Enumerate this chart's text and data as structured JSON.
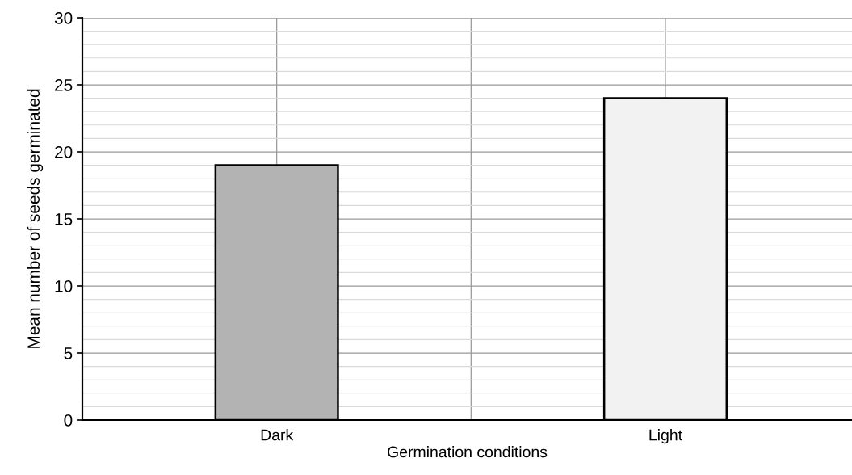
{
  "chart_data": {
    "type": "bar",
    "xlabel": "Germination conditions",
    "ylabel": "Mean number of seeds germinated",
    "categories": [
      "Dark",
      "Light"
    ],
    "values": [
      19,
      24
    ],
    "colors": [
      "#b3b3b3",
      "#f2f2f2"
    ],
    "ylim": [
      0,
      30
    ],
    "yticks": [
      0,
      5,
      10,
      15,
      20,
      25,
      30
    ],
    "grid": true
  }
}
